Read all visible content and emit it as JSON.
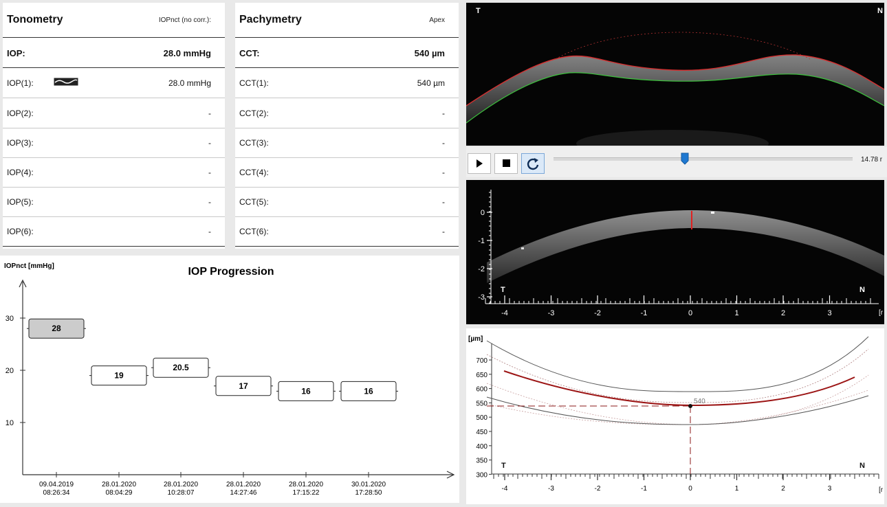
{
  "tonometry": {
    "title": "Tonometry",
    "subtitle": "IOPnct (no corr.):",
    "main": {
      "label": "IOP:",
      "value": "28.0 mmHg"
    },
    "rows": [
      {
        "label": "IOP(1):",
        "value": "28.0 mmHg"
      },
      {
        "label": "IOP(2):",
        "value": "-"
      },
      {
        "label": "IOP(3):",
        "value": "-"
      },
      {
        "label": "IOP(4):",
        "value": "-"
      },
      {
        "label": "IOP(5):",
        "value": "-"
      },
      {
        "label": "IOP(6):",
        "value": "-"
      }
    ]
  },
  "pachymetry": {
    "title": "Pachymetry",
    "subtitle": "Apex",
    "main": {
      "label": "CCT:",
      "value": "540 µm"
    },
    "rows": [
      {
        "label": "CCT(1):",
        "value": "540 µm"
      },
      {
        "label": "CCT(2):",
        "value": "-"
      },
      {
        "label": "CCT(3):",
        "value": "-"
      },
      {
        "label": "CCT(4):",
        "value": "-"
      },
      {
        "label": "CCT(5):",
        "value": "-"
      },
      {
        "label": "CCT(6):",
        "value": "-"
      }
    ]
  },
  "icons": {
    "play": "play-icon",
    "stop": "stop-icon",
    "loop": "loop-icon",
    "waveform": "waveform-icon"
  },
  "player": {
    "time": "14.78 r",
    "slider_fraction": 0.44
  },
  "scan_top": {
    "left": "T",
    "right": "N"
  },
  "scan_mid": {
    "left": "T",
    "right": "N",
    "y_ticks": [
      "0",
      "-1",
      "-2",
      "-3"
    ],
    "x_ticks": [
      "-4",
      "-3",
      "-2",
      "-1",
      "0",
      "1",
      "2",
      "3"
    ],
    "x_unit": "[r"
  },
  "thickness": {
    "ylabel": "[µm]",
    "y_ticks": [
      "700",
      "650",
      "600",
      "550",
      "500",
      "450",
      "400",
      "350",
      "300"
    ],
    "x_ticks": [
      "-4",
      "-3",
      "-2",
      "-1",
      "0",
      "1",
      "2",
      "3"
    ],
    "marker_label": "540",
    "left": "T",
    "right": "N",
    "x_unit": "[r"
  },
  "chart_data": {
    "type": "scatter",
    "title": "IOP Progression",
    "ylabel": "IOPnct [mmHg]",
    "xlabel": "",
    "ylim": [
      0,
      35
    ],
    "y_ticks": [
      10,
      20,
      30
    ],
    "points": [
      {
        "date": "09.04.2019",
        "time": "08:26:34",
        "value": 28,
        "label": "28",
        "highlight": true
      },
      {
        "date": "28.01.2020",
        "time": "08:04:29",
        "value": 19,
        "label": "19",
        "highlight": false
      },
      {
        "date": "28.01.2020",
        "time": "10:28:07",
        "value": 20.5,
        "label": "20.5",
        "highlight": false
      },
      {
        "date": "28.01.2020",
        "time": "14:27:46",
        "value": 17,
        "label": "17",
        "highlight": false
      },
      {
        "date": "28.01.2020",
        "time": "17:15:22",
        "value": 16,
        "label": "16",
        "highlight": false
      },
      {
        "date": "30.01.2020",
        "time": "17:28:50",
        "value": 16,
        "label": "16",
        "highlight": false
      }
    ],
    "colors": {
      "highlight": "#cccccc",
      "normal": "#ffffff"
    }
  }
}
